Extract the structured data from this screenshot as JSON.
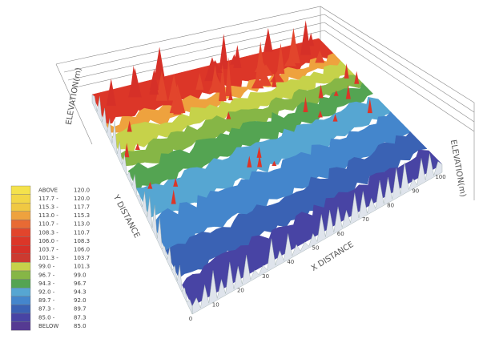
{
  "figure": {
    "axis_labels": {
      "x": "X DISTANCE",
      "y": "Y DISTANCE",
      "z_left": "ELEVATION(m)",
      "z_right": "ELEVATION(m)"
    },
    "legend": [
      {
        "from": "ABOVE",
        "to": "120.0",
        "color": "#f4e24c"
      },
      {
        "from": "117.7 -",
        "to": "120.0",
        "color": "#f2d646"
      },
      {
        "from": "115.3 -",
        "to": "117.7",
        "color": "#f0c842"
      },
      {
        "from": "113.0 -",
        "to": "115.3",
        "color": "#eea23e"
      },
      {
        "from": "110.7 -",
        "to": "113.0",
        "color": "#e86a34"
      },
      {
        "from": "108.3 -",
        "to": "110.7",
        "color": "#e2452c"
      },
      {
        "from": "106.0 -",
        "to": "108.3",
        "color": "#dc3628"
      },
      {
        "from": "103.7 -",
        "to": "106.0",
        "color": "#d63028"
      },
      {
        "from": "101.3 -",
        "to": "103.7",
        "color": "#cc3a30"
      },
      {
        "from": "99.0 -",
        "to": "101.3",
        "color": "#c6d24a"
      },
      {
        "from": "96.7 -",
        "to": "99.0",
        "color": "#86b646"
      },
      {
        "from": "94.3 -",
        "to": "96.7",
        "color": "#54a452"
      },
      {
        "from": "92.0 -",
        "to": "94.3",
        "color": "#56a6d2"
      },
      {
        "from": "89.7 -",
        "to": "92.0",
        "color": "#4486cc"
      },
      {
        "from": "87.3 -",
        "to": "89.7",
        "color": "#3a62b4"
      },
      {
        "from": "85.0 -",
        "to": "87.3",
        "color": "#4844a4"
      },
      {
        "from": "BELOW",
        "to": "85.0",
        "color": "#553a92"
      }
    ],
    "x_ticks": [
      "0",
      "10",
      "20",
      "30",
      "40",
      "50",
      "60",
      "70",
      "80",
      "90",
      "100"
    ]
  }
}
